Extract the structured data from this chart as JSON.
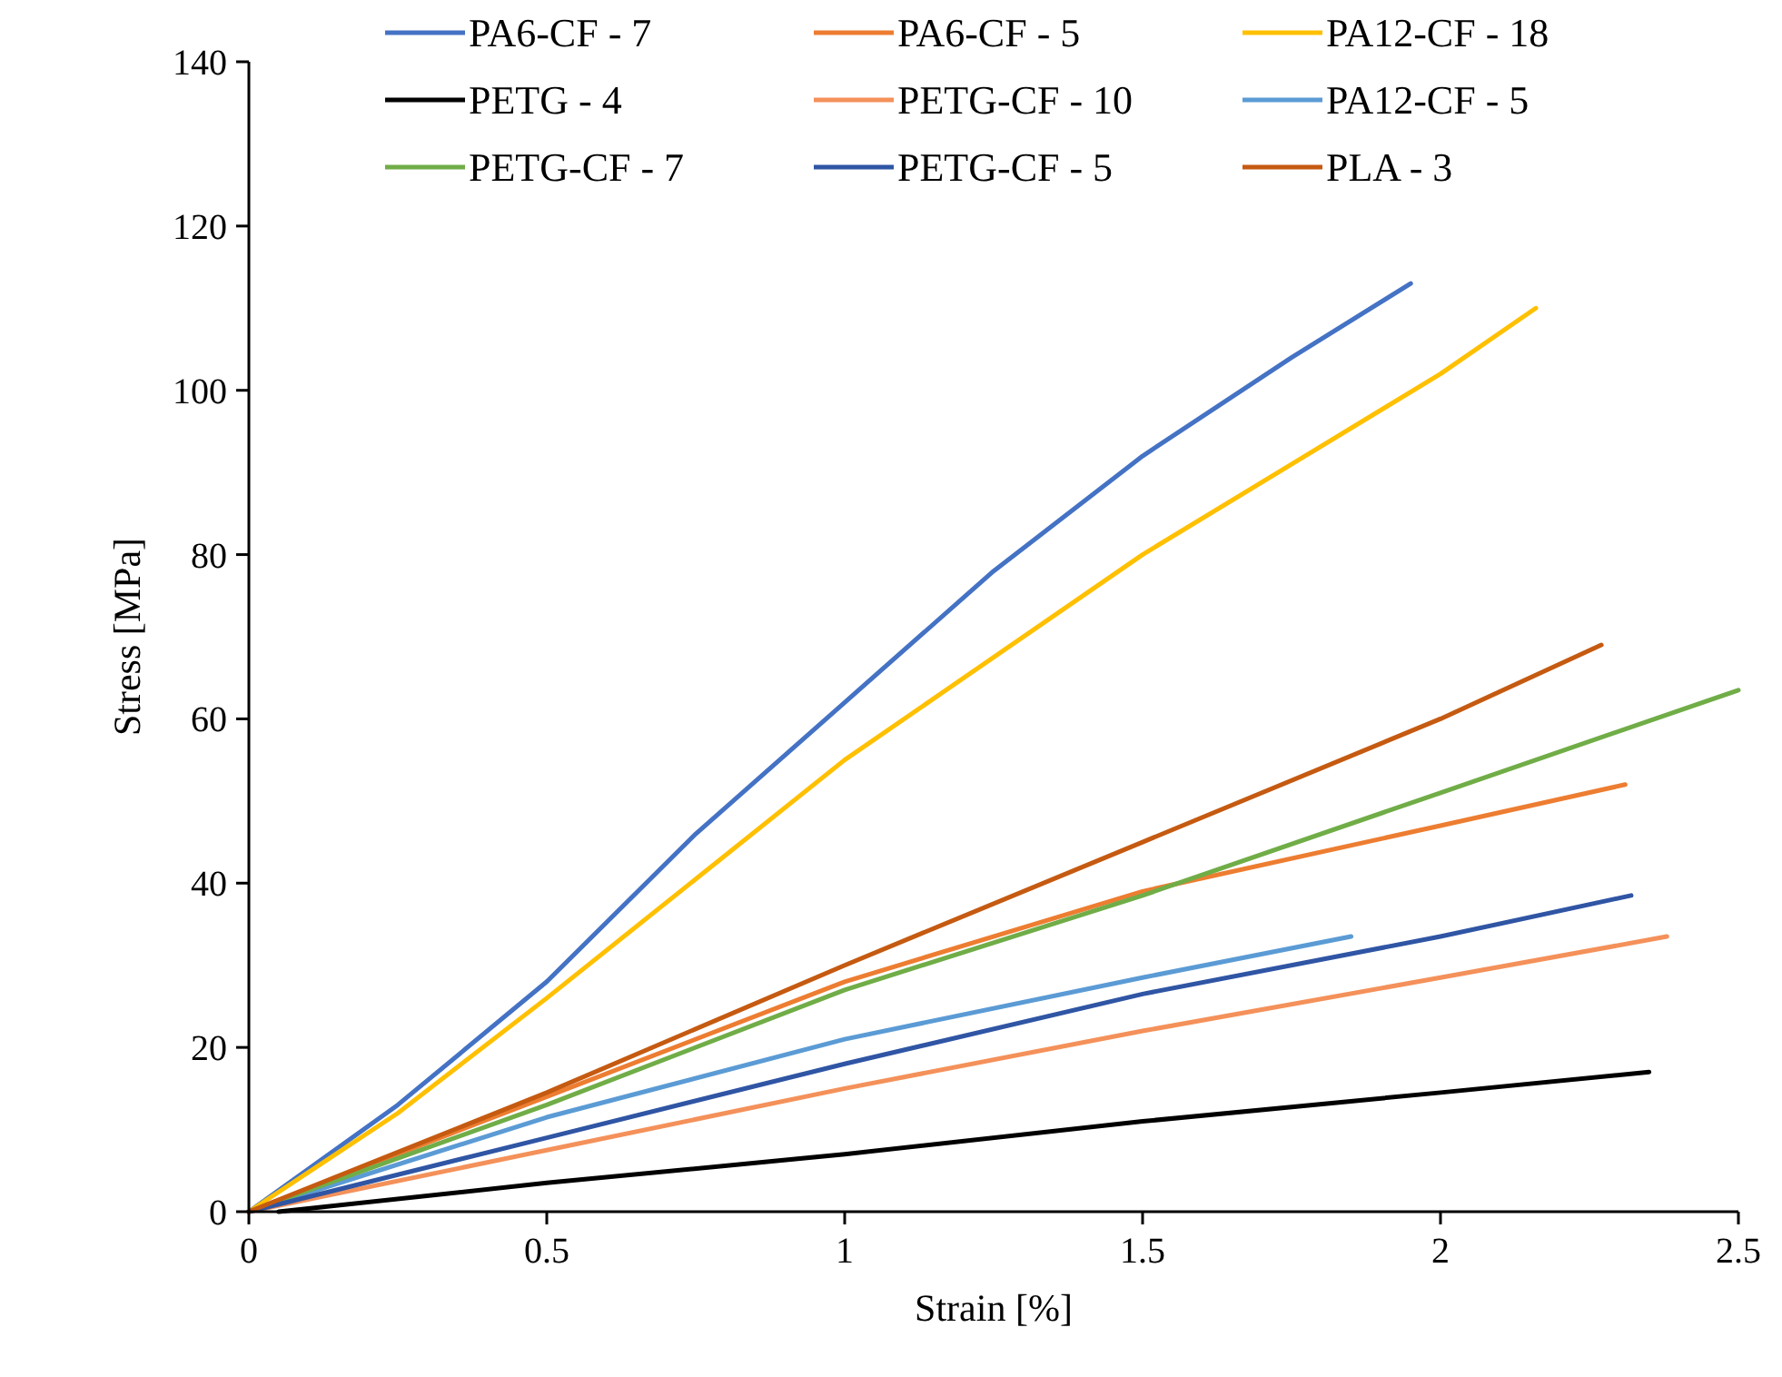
{
  "chart_data": {
    "type": "line",
    "xlabel": "Strain [%]",
    "ylabel": "Stress [MPa]",
    "xlim": [
      0,
      2.5
    ],
    "ylim": [
      0,
      140
    ],
    "xticks": [
      0,
      0.5,
      1,
      1.5,
      2,
      2.5
    ],
    "yticks": [
      0,
      20,
      40,
      60,
      80,
      100,
      120,
      140
    ],
    "grid": false,
    "legend": "top",
    "marker": "none",
    "line_style": "solid",
    "series": [
      {
        "name": "PA6-CF - 7",
        "color": "#4472c4",
        "x": [
          0,
          0.25,
          0.5,
          0.75,
          1,
          1.25,
          1.5,
          1.75,
          1.95
        ],
        "values": [
          0,
          13,
          28,
          46,
          62,
          78,
          92,
          104,
          113
        ]
      },
      {
        "name": "PA6-CF - 5",
        "color": "#ed7d31",
        "x": [
          0,
          0.5,
          1,
          1.5,
          2,
          2.31
        ],
        "values": [
          0,
          14,
          28,
          39,
          47,
          52
        ]
      },
      {
        "name": "PA12-CF - 18",
        "color": "#ffc000",
        "x": [
          0,
          0.25,
          0.5,
          1,
          1.5,
          2,
          2.16
        ],
        "values": [
          0,
          12,
          26,
          55,
          80,
          102,
          110
        ]
      },
      {
        "name": "PETG - 4",
        "color": "#000000",
        "x": [
          0.05,
          0.5,
          1,
          1.5,
          2,
          2.35
        ],
        "values": [
          0,
          3.5,
          7,
          11,
          14.5,
          17
        ]
      },
      {
        "name": "PETG-CF - 10",
        "color": "#f4915a",
        "x": [
          0,
          0.5,
          1,
          1.5,
          2,
          2.38
        ],
        "values": [
          0,
          7.5,
          15,
          22,
          28.5,
          33.5
        ]
      },
      {
        "name": "PA12-CF - 5",
        "color": "#5b9bd5",
        "x": [
          0,
          0.5,
          1,
          1.5,
          1.85
        ],
        "values": [
          0,
          11.5,
          21,
          28.5,
          33.5
        ]
      },
      {
        "name": "PETG-CF - 7",
        "color": "#70ad47",
        "x": [
          0,
          0.5,
          1,
          1.5,
          2,
          2.5
        ],
        "values": [
          0,
          13,
          27,
          38.5,
          51,
          63.5
        ]
      },
      {
        "name": "PETG-CF - 5",
        "color": "#2f55a4",
        "x": [
          0,
          0.5,
          1,
          1.5,
          2,
          2.32
        ],
        "values": [
          0,
          9,
          18,
          26.5,
          33.5,
          38.5
        ]
      },
      {
        "name": "PLA - 3",
        "color": "#c55a11",
        "x": [
          0,
          0.5,
          1,
          1.5,
          2,
          2.27
        ],
        "values": [
          0,
          14.5,
          30,
          45,
          60,
          69
        ]
      }
    ]
  }
}
